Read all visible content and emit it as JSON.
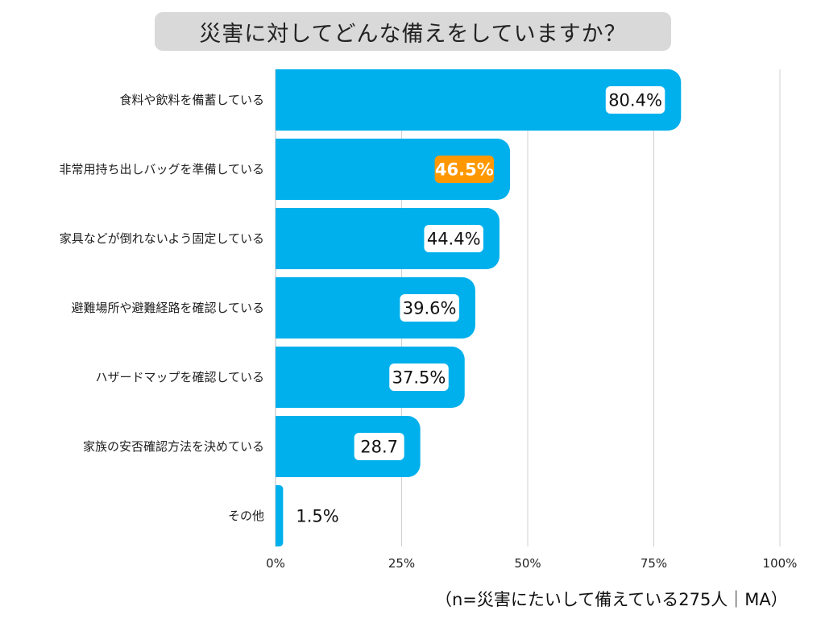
{
  "chart_data": {
    "type": "bar",
    "orientation": "horizontal",
    "title": "災害に対してどんな備えをしていますか？",
    "categories": [
      "食料や飲料を備蓄している",
      "非常用持ち出しバッグを準備している",
      "家具などが倒れないよう固定している",
      "避難場所や避難経路を確認している",
      "ハザードマップを確認している",
      "家族の安否確認方法を決めている",
      "その他"
    ],
    "values": [
      80.4,
      46.5,
      44.4,
      39.6,
      37.5,
      28.7,
      1.5
    ],
    "value_labels": [
      "80.4%",
      "46.5%",
      "44.4%",
      "39.6%",
      "37.5%",
      "28.7",
      "1.5%"
    ],
    "highlight_index": 1,
    "xlim": [
      0,
      100
    ],
    "xticks": [
      "0%",
      "25%",
      "50%",
      "75%",
      "100%"
    ],
    "grid": true,
    "footnote": "（n=災害にたいして備えている275人｜MA）"
  },
  "colors": {
    "bar": "#00b0ec",
    "highlight": "#ff9800",
    "grid": "#d0d0d0",
    "title_bg": "#d9d9d9",
    "label_bg": "#ffffff"
  }
}
